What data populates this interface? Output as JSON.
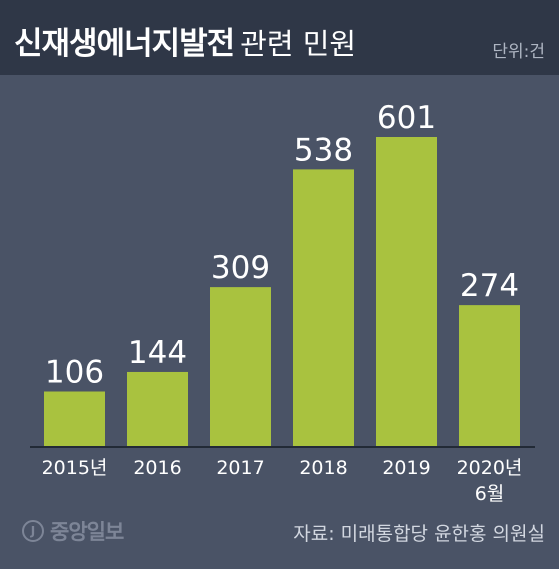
{
  "header": {
    "title_bold": "신재생에너지발전",
    "title_light": "관련 민원",
    "unit": "단위:건"
  },
  "colors": {
    "background": "#4a5366",
    "header": "#2f3747",
    "bar": "#a9c23f",
    "axis": "#222a36"
  },
  "chart_data": {
    "type": "bar",
    "categories": [
      "2015년",
      "2016",
      "2017",
      "2018",
      "2019",
      "2020년\n6월"
    ],
    "values": [
      106,
      144,
      309,
      538,
      601,
      274
    ],
    "ylim": [
      0,
      601
    ],
    "grid": false,
    "data_labels": true
  },
  "footer": {
    "logo_symbol": "J",
    "logo": "중앙일보",
    "source": "자료: 미래통합당 윤한홍 의원실"
  }
}
